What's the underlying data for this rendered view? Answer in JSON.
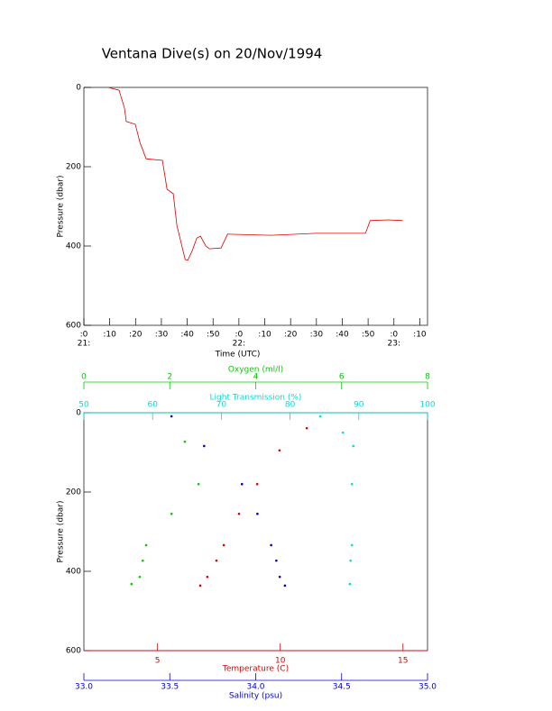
{
  "chart_data": [
    {
      "type": "line",
      "title": "Ventana Dive(s) on 20/Nov/1994",
      "xlabel": "Time (UTC)",
      "ylabel": "Pressure (dbar)",
      "xlim": [
        0,
        133
      ],
      "ylim": [
        0,
        600
      ],
      "y_inverted": true,
      "xticks": [
        {
          "value": 0,
          "label": ":0"
        },
        {
          "value": 10,
          "label": ":10"
        },
        {
          "value": 20,
          "label": ":20"
        },
        {
          "value": 30,
          "label": ":30"
        },
        {
          "value": 40,
          "label": ":40"
        },
        {
          "value": 50,
          "label": ":50"
        },
        {
          "value": 60,
          "label": ":0"
        },
        {
          "value": 70,
          "label": ":10"
        },
        {
          "value": 80,
          "label": ":20"
        },
        {
          "value": 90,
          "label": ":30"
        },
        {
          "value": 100,
          "label": ":40"
        },
        {
          "value": 110,
          "label": ":50"
        },
        {
          "value": 120,
          "label": ":0"
        },
        {
          "value": 130,
          "label": ":10"
        }
      ],
      "xticks_hours": [
        {
          "value": 0,
          "label": "21:"
        },
        {
          "value": 60,
          "label": "22:"
        },
        {
          "value": 120,
          "label": "23:"
        }
      ],
      "yticks": [
        0,
        200,
        400,
        600
      ],
      "series": [
        {
          "color": "#dd0000",
          "x": [
            9.4,
            13.6,
            15.7,
            16.4,
            19.9,
            21.7,
            24.1,
            30.4,
            32.2,
            34.6,
            36,
            39.2,
            40.2,
            42,
            43.7,
            45.1,
            47.2,
            48.6,
            53.1,
            55.6,
            72.4,
            89.9,
            109,
            110.8,
            117.8,
            123.4
          ],
          "values": [
            0,
            7,
            52,
            86,
            93,
            139,
            180,
            184,
            257,
            268,
            348,
            434,
            436,
            411,
            380,
            375,
            400,
            407,
            405,
            370,
            373,
            368,
            368,
            336,
            334,
            336
          ]
        }
      ]
    },
    {
      "type": "scatter",
      "ylabel": "Pressure (dbar)",
      "ylim": [
        0,
        600
      ],
      "y_inverted": true,
      "yticks": [
        0,
        200,
        400,
        600
      ],
      "x_axes": [
        {
          "label": "Temperature (C)",
          "color": "#dd0000",
          "position": "bottom",
          "lim": [
            2,
            16
          ],
          "ticks": [
            5,
            10,
            15
          ]
        },
        {
          "label": "Salinity (psu)",
          "color": "#0000cc",
          "position": "bottom2",
          "lim": [
            33,
            35
          ],
          "ticks": [
            {
              "value": 33,
              "label": "33.0"
            },
            {
              "value": 33.5,
              "label": "33.5"
            },
            {
              "value": 34,
              "label": "34.0"
            },
            {
              "value": 34.5,
              "label": "34.5"
            },
            {
              "value": 35,
              "label": "35.0"
            }
          ]
        },
        {
          "label": "Oxygen (ml/l)",
          "color": "#00cc00",
          "position": "top2",
          "lim": [
            0,
            8
          ],
          "ticks": [
            0,
            2,
            4,
            6,
            8
          ]
        },
        {
          "label": "Light Transmission (%)",
          "color": "#00dddd",
          "position": "top",
          "lim": [
            50,
            100
          ],
          "ticks": [
            50,
            60,
            70,
            80,
            90,
            100
          ]
        }
      ],
      "series": [
        {
          "color": "#dd0000",
          "axis": 0,
          "x": [
            11.08,
            9.97,
            9.06,
            8.32,
            7.7,
            7.4,
            7.03,
            6.74
          ],
          "values": [
            39,
            95,
            180,
            255,
            334,
            373,
            414,
            436
          ]
        },
        {
          "color": "#0000cc",
          "axis": 1,
          "x": [
            33.51,
            33.7,
            33.92,
            34.01,
            34.09,
            34.12,
            34.14,
            34.17
          ],
          "values": [
            9,
            84,
            180,
            255,
            334,
            373,
            414,
            436
          ]
        },
        {
          "color": "#00cc00",
          "axis": 2,
          "x": [
            2.35,
            2.67,
            2.04,
            1.45,
            1.37,
            1.3,
            1.11
          ],
          "values": [
            73,
            180,
            255,
            334,
            373,
            414,
            432
          ]
        },
        {
          "color": "#00dddd",
          "axis": 3,
          "x": [
            84.4,
            87.7,
            89.2,
            89,
            89,
            88.8,
            88.7
          ],
          "values": [
            9,
            50,
            84,
            180,
            334,
            373,
            432
          ]
        }
      ]
    }
  ]
}
